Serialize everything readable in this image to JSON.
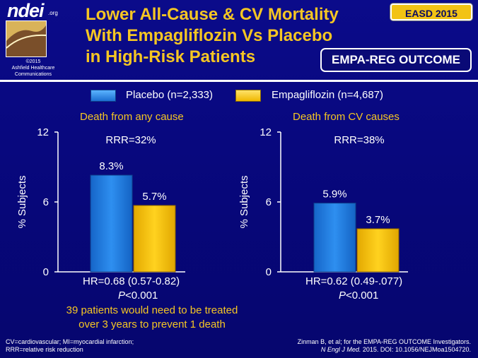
{
  "logo": {
    "word": "ndei",
    "org": ".org",
    "copyright": "©2015",
    "owner_line1": "Ashfield Healthcare",
    "owner_line2": "Communications"
  },
  "title_lines": [
    "Lower All-Cause & CV Mortality",
    "With Empagliflozin Vs Placebo",
    "in High-Risk Patients"
  ],
  "badges": {
    "conference": "EASD 2015",
    "trial": "EMPA-REG OUTCOME"
  },
  "colors": {
    "placebo": "#1f7fe0",
    "empagliflozin": "#f5c10e",
    "title": "#f5c623",
    "background": "#08087e"
  },
  "chart_data": [
    {
      "type": "bar",
      "title": "Death from any cause",
      "ylabel": "% Subjects",
      "ylim": [
        0,
        12
      ],
      "yticks": [
        "0",
        "6",
        "12"
      ],
      "series": [
        {
          "name": "Placebo (n=2,333)",
          "values": [
            8.3
          ],
          "label": "8.3%"
        },
        {
          "name": "Empagliflozin (n=4,687)",
          "values": [
            5.7
          ],
          "label": "5.7%"
        }
      ],
      "annotation": "RRR=32%",
      "hr": "HR=0.68 (0.57-0.82)",
      "p_prefix": "P",
      "p_value": "<0.001"
    },
    {
      "type": "bar",
      "title": "Death from CV causes",
      "ylabel": "% Subjects",
      "ylim": [
        0,
        12
      ],
      "yticks": [
        "0",
        "6",
        "12"
      ],
      "series": [
        {
          "name": "Placebo (n=2,333)",
          "values": [
            5.9
          ],
          "label": "5.9%"
        },
        {
          "name": "Empagliflozin (n=4,687)",
          "values": [
            3.7
          ],
          "label": "3.7%"
        }
      ],
      "annotation": "RRR=38%",
      "hr": "HR=0.62 (0.49-.077)",
      "p_prefix": "P",
      "p_value": "<0.001"
    }
  ],
  "legend": {
    "placebo": "Placebo (n=2,333)",
    "empagliflozin": "Empagliflozin (n=4,687)"
  },
  "nnt_lines": [
    "39 patients would need to be treated",
    "over 3 years to prevent 1 death"
  ],
  "footnotes": {
    "left_line1": "CV=cardiovascular; MI=myocardial infarction;",
    "left_line2": "RRR=relative risk reduction",
    "ref_line1": "Zinman B, et al; for the EMPA-REG OUTCOME Investigators.",
    "ref_journal": "N Engl J Med.",
    "ref_rest": " 2015. DOI: 10.1056/NEJMoa1504720."
  }
}
